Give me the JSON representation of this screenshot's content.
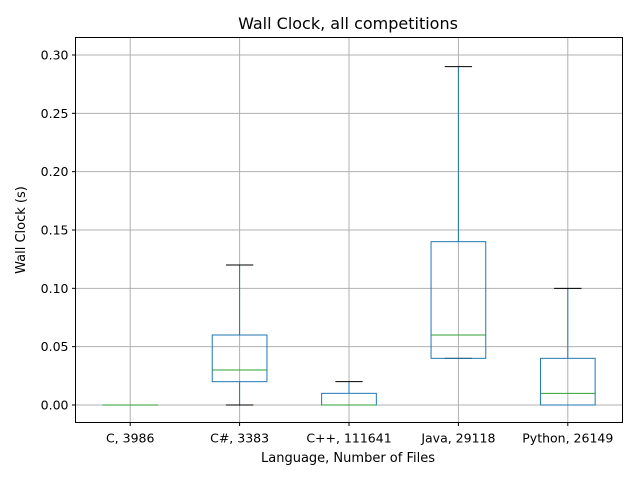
{
  "chart_data": {
    "type": "box",
    "title": "Wall Clock, all competitions",
    "xlabel": "Language, Number of Files",
    "ylabel": "Wall Clock (s)",
    "ylim": [
      -0.015,
      0.315
    ],
    "yticks": [
      0.0,
      0.05,
      0.1,
      0.15,
      0.2,
      0.25,
      0.3
    ],
    "ytick_labels": [
      "0.00",
      "0.05",
      "0.10",
      "0.15",
      "0.20",
      "0.25",
      "0.30"
    ],
    "grid": true,
    "categories": [
      "C, 3986",
      "C#, 3383",
      "C++, 111641",
      "Java, 29118",
      "Python, 26149"
    ],
    "boxes": [
      {
        "whislo": 0.0,
        "q1": 0.0,
        "med": 0.0,
        "q3": 0.0,
        "whishi": 0.0
      },
      {
        "whislo": 0.0,
        "q1": 0.02,
        "med": 0.03,
        "q3": 0.06,
        "whishi": 0.12
      },
      {
        "whislo": 0.0,
        "q1": 0.0,
        "med": 0.0,
        "q3": 0.01,
        "whishi": 0.02
      },
      {
        "whislo": 0.04,
        "q1": 0.04,
        "med": 0.06,
        "q3": 0.14,
        "whishi": 0.29
      },
      {
        "whislo": 0.0,
        "q1": 0.0,
        "med": 0.01,
        "q3": 0.04,
        "whishi": 0.1
      }
    ],
    "colors": {
      "box": "#1f77b4",
      "median": "#2ca02c",
      "cap": "#000000",
      "grid": "#b0b0b0"
    }
  }
}
